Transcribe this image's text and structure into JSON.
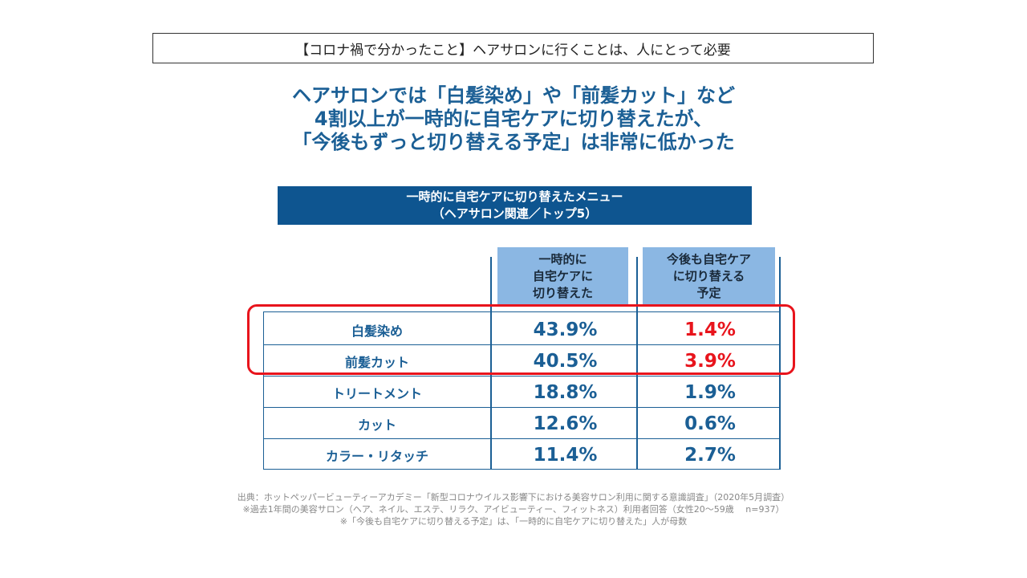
{
  "top_title": "【コロナ禍で分かったこと】ヘアサロンに行くことは、人にとって必要",
  "headline": [
    "ヘアサロンでは「白髪染め」や「前髪カット」など",
    "4割以上が一時的に自宅ケアに切り替えたが、",
    "「今後もずっと切り替える予定」は非常に低かった"
  ],
  "chart_data": {
    "type": "table",
    "title": [
      "一時的に自宅ケアに切り替えたメニュー",
      "（ヘアサロン関連／トップ5）"
    ],
    "columns": [
      [
        "一時的に",
        "自宅ケアに",
        "切り替えた"
      ],
      [
        "今後も自宅ケア",
        "に切り替える",
        "予定"
      ]
    ],
    "rows": [
      {
        "label": "白髪染め",
        "temporary": "43.9%",
        "future": "1.4%",
        "highlight": true
      },
      {
        "label": "前髪カット",
        "temporary": "40.5%",
        "future": "3.9%",
        "highlight": true
      },
      {
        "label": "トリートメント",
        "temporary": "18.8%",
        "future": "1.9%",
        "highlight": false
      },
      {
        "label": "カット",
        "temporary": "12.6%",
        "future": "0.6%",
        "highlight": false
      },
      {
        "label": "カラー・リタッチ",
        "temporary": "11.4%",
        "future": "2.7%",
        "highlight": false
      }
    ]
  },
  "source": [
    "出典：ホットペッパービューティーアカデミー「新型コロナウイルス影響下における美容サロン利用に関する意識調査」（2020年5月調査）",
    "※過去1年間の美容サロン（ヘア、ネイル、エステ、リラク、アイビューティー、フィットネス）利用者回答（女性20～59歳　 n=937）",
    "※「今後も自宅ケアに切り替える予定」は、「一時的に自宅ケアに切り替えた」人が母数"
  ],
  "colors": {
    "accent": "#1b5f95",
    "title_bg": "#0e5590",
    "header_bg": "#8bb7e3",
    "highlight": "#e8141c"
  }
}
